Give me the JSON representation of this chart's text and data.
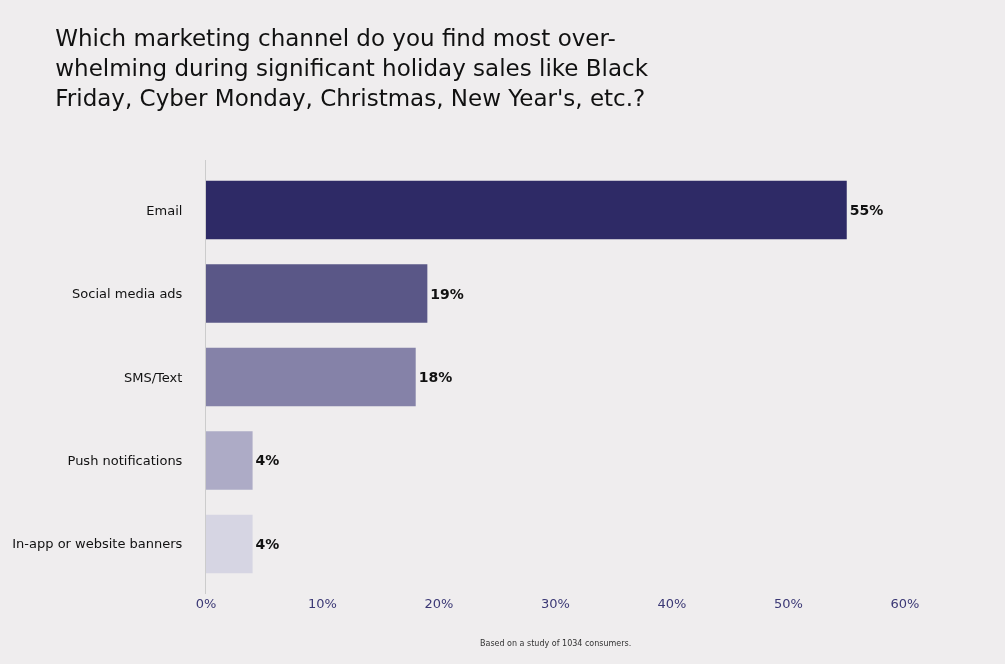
{
  "chart_data": {
    "type": "bar",
    "orientation": "horizontal",
    "title": "Which marketing channel do you find most over-\nwhelming during significant holiday sales like Black\nFriday, Cyber Monday, Christmas, New Year's, etc.?",
    "categories": [
      "Email",
      "Social media ads",
      "SMS/Text",
      "Push notifications",
      "In-app or website banners"
    ],
    "values": [
      55,
      19,
      18,
      4,
      4
    ],
    "value_labels": [
      "55%",
      "19%",
      "18%",
      "4%",
      "4%"
    ],
    "colors": [
      "#2e2a66",
      "#5a5787",
      "#8582a8",
      "#adabc6",
      "#d6d5e3"
    ],
    "xlim": [
      0,
      60
    ],
    "xticks": [
      {
        "value": 0,
        "label": "0%"
      },
      {
        "value": 10,
        "label": "10%"
      },
      {
        "value": 20,
        "label": "20%"
      },
      {
        "value": 30,
        "label": "30%"
      },
      {
        "value": 40,
        "label": "40%"
      },
      {
        "value": 50,
        "label": "50%"
      },
      {
        "value": 60,
        "label": "60%"
      }
    ],
    "grid": false,
    "annotations": [
      "Based on a study of 1034 consumers."
    ]
  }
}
